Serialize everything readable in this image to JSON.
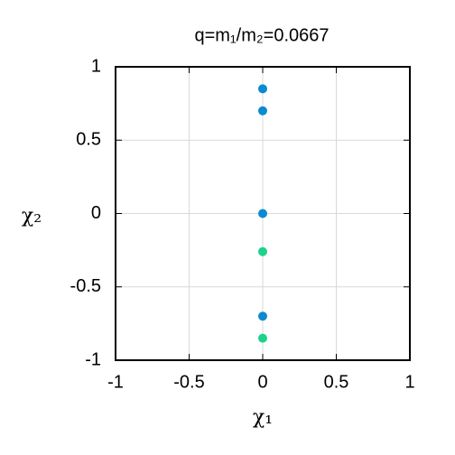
{
  "chart_data": {
    "type": "scatter",
    "title": "q=m₁/m₂=0.0667",
    "x_label": "χ₁",
    "y_label": "χ₂",
    "x": [
      0,
      0,
      0,
      0,
      0,
      0
    ],
    "y": [
      0.85,
      0.7,
      0,
      -0.26,
      -0.7,
      -0.85
    ],
    "colors": [
      "#0a8ad0",
      "#0a8ad0",
      "#0a8ad0",
      "#1dd28a",
      "#0a8ad0",
      "#1dd28a"
    ],
    "xlim": [
      -1,
      1
    ],
    "ylim": [
      -1,
      1
    ],
    "xticks": [
      -1,
      -0.5,
      0,
      0.5,
      1
    ],
    "yticks": [
      -1,
      -0.5,
      0,
      0.5,
      1
    ],
    "grid": true
  }
}
